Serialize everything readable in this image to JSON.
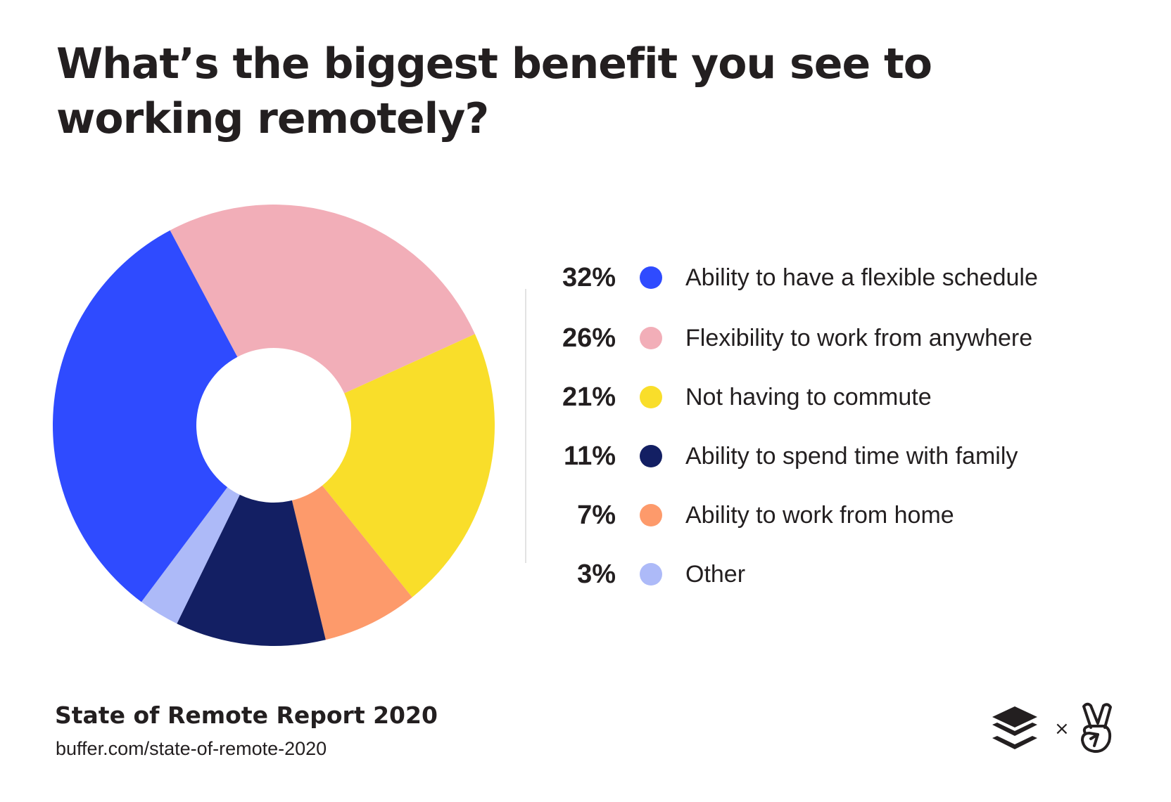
{
  "title": "What’s the biggest benefit you see to working remotely?",
  "chart_data": {
    "type": "pie",
    "donut": true,
    "title": "What’s the biggest benefit you see to working remotely?",
    "categories": [
      "Ability to have a flexible schedule",
      "Flexibility to work from anywhere",
      "Not having to commute",
      "Ability to spend time with family",
      "Ability to work from home",
      "Other"
    ],
    "values": [
      32,
      26,
      21,
      11,
      7,
      3
    ],
    "labels": [
      "32%",
      "26%",
      "21%",
      "11%",
      "7%",
      "3%"
    ],
    "colors": [
      "#2F4BFF",
      "#F2AEB8",
      "#F9DE2A",
      "#131F63",
      "#FD9A6B",
      "#ADBAF8"
    ],
    "legend": "right"
  },
  "footer": {
    "report": "State of Remote Report 2020",
    "url": "buffer.com/state-of-remote-2020",
    "separator": "×"
  },
  "logos": [
    "buffer-logo",
    "angellist-peace-hand-logo"
  ]
}
